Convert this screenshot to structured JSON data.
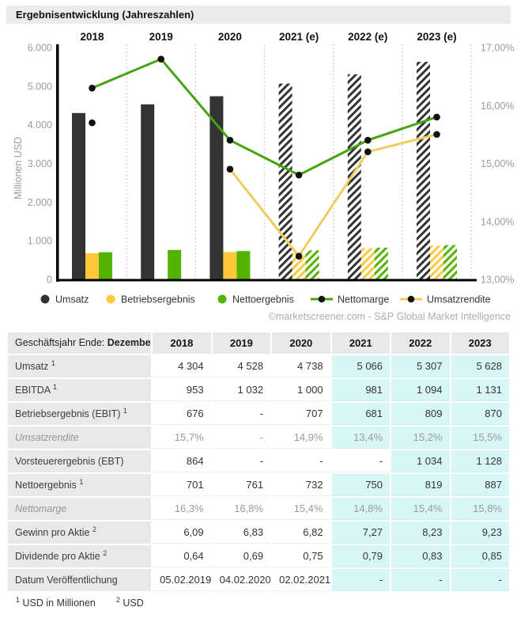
{
  "header": {
    "title": "Ergebnisentwicklung (Jahreszahlen)"
  },
  "chart_data": {
    "type": "bar",
    "categories": [
      "2018",
      "2019",
      "2020",
      "2021 (e)",
      "2022 (e)",
      "2023 (e)"
    ],
    "estimate_from_index": 3,
    "series": [
      {
        "name": "Umsatz",
        "kind": "bar",
        "color": "#333333",
        "values": [
          4304,
          4528,
          4738,
          5066,
          5307,
          5628
        ]
      },
      {
        "name": "Betriebsergebnis",
        "kind": "bar",
        "color": "#fdc93b",
        "values": [
          676,
          null,
          707,
          681,
          809,
          870
        ]
      },
      {
        "name": "Nettoergebnis",
        "kind": "bar",
        "color": "#52b400",
        "values": [
          701,
          761,
          732,
          750,
          819,
          887
        ]
      },
      {
        "name": "Nettomarge",
        "kind": "line",
        "color": "#46a410",
        "values": [
          16.3,
          16.8,
          15.4,
          14.8,
          15.4,
          15.8
        ]
      },
      {
        "name": "Umsatzrendite",
        "kind": "line",
        "color": "#f2cd5e",
        "values": [
          15.7,
          null,
          14.9,
          13.4,
          15.2,
          15.5
        ]
      }
    ],
    "left_axis": {
      "label": "Millionen USD",
      "min": 0,
      "max": 6000,
      "tick_labels": [
        "6.000",
        "5.000",
        "4.000",
        "3.000",
        "2.000",
        "1.000",
        "0"
      ]
    },
    "right_axis": {
      "min": 13,
      "max": 17,
      "tick_labels": [
        "17,00%",
        "16,00%",
        "15,00%",
        "14,00%",
        "13,00%"
      ]
    },
    "marker_color": "#111111",
    "grid": "dotted-vertical-separators",
    "legend_position": "bottom",
    "attribution": "©marketscreener.com - S&P Global Market Intelligence",
    "title": "Ergebnisentwicklung (Jahreszahlen)"
  },
  "table": {
    "header": {
      "label_prefix": "Geschäftsjahr Ende: ",
      "label_bold": "Dezember",
      "years": [
        "2018",
        "2019",
        "2020",
        "2021",
        "2022",
        "2023"
      ]
    },
    "rows": [
      {
        "label": "Umsatz",
        "sup": "1",
        "italic": false,
        "values": [
          "4 304",
          "4 528",
          "4 738",
          "5 066",
          "5 307",
          "5 628"
        ],
        "highlight": [
          false,
          false,
          false,
          true,
          true,
          true
        ]
      },
      {
        "label": "EBITDA",
        "sup": "1",
        "italic": false,
        "values": [
          "953",
          "1 032",
          "1 000",
          "981",
          "1 094",
          "1 131"
        ],
        "highlight": [
          false,
          false,
          false,
          true,
          true,
          true
        ]
      },
      {
        "label": "Betriebsergebnis (EBIT)",
        "sup": "1",
        "italic": false,
        "values": [
          "676",
          "-",
          "707",
          "681",
          "809",
          "870"
        ],
        "highlight": [
          false,
          false,
          false,
          true,
          true,
          true
        ]
      },
      {
        "label": "Umsatzrendite",
        "sup": "",
        "italic": true,
        "values": [
          "15,7%",
          "-",
          "14,9%",
          "13,4%",
          "15,2%",
          "15,5%"
        ],
        "highlight": [
          false,
          false,
          false,
          true,
          true,
          true
        ]
      },
      {
        "label": "Vorsteuerergebnis (EBT)",
        "sup": "",
        "italic": false,
        "values": [
          "864",
          "-",
          "-",
          "-",
          "1 034",
          "1 128"
        ],
        "highlight": [
          false,
          false,
          false,
          false,
          true,
          true
        ]
      },
      {
        "label": "Nettoergebnis",
        "sup": "1",
        "italic": false,
        "values": [
          "701",
          "761",
          "732",
          "750",
          "819",
          "887"
        ],
        "highlight": [
          false,
          false,
          false,
          true,
          true,
          true
        ]
      },
      {
        "label": "Nettomarge",
        "sup": "",
        "italic": true,
        "values": [
          "16,3%",
          "16,8%",
          "15,4%",
          "14,8%",
          "15,4%",
          "15,8%"
        ],
        "highlight": [
          false,
          false,
          false,
          true,
          true,
          true
        ]
      },
      {
        "label": "Gewinn pro Aktie",
        "sup": "2",
        "italic": false,
        "values": [
          "6,09",
          "6,83",
          "6,82",
          "7,27",
          "8,23",
          "9,23"
        ],
        "highlight": [
          false,
          false,
          false,
          true,
          true,
          true
        ]
      },
      {
        "label": "Dividende pro Aktie",
        "sup": "2",
        "italic": false,
        "values": [
          "0,64",
          "0,69",
          "0,75",
          "0,79",
          "0,83",
          "0,85"
        ],
        "highlight": [
          false,
          false,
          false,
          true,
          true,
          true
        ]
      },
      {
        "label": "Datum Veröffentlichung",
        "sup": "",
        "italic": false,
        "values": [
          "05.02.2019",
          "04.02.2020",
          "02.02.2021",
          "-",
          "-",
          "-"
        ],
        "highlight": [
          false,
          false,
          false,
          true,
          true,
          true
        ]
      }
    ],
    "footnotes": [
      {
        "sup": "1",
        "text": "USD in Millionen"
      },
      {
        "sup": "2",
        "text": "USD"
      }
    ],
    "highlight_color": "#d9f6f7"
  }
}
